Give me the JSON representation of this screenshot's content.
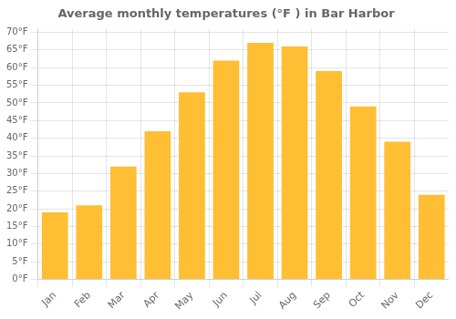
{
  "chart_data": {
    "type": "bar",
    "title": "Average monthly temperatures (°F ) in Bar Harbor",
    "categories": [
      "Jan",
      "Feb",
      "Mar",
      "Apr",
      "May",
      "Jun",
      "Jul",
      "Aug",
      "Sep",
      "Oct",
      "Nov",
      "Dec"
    ],
    "values": [
      19,
      21,
      32,
      42,
      53,
      62,
      67,
      66,
      59,
      49,
      39,
      24
    ],
    "color": "#FFBE33",
    "ylim": [
      0,
      71
    ],
    "yticks": [
      {
        "value": 0,
        "label": "0°F"
      },
      {
        "value": 5,
        "label": "5°F"
      },
      {
        "value": 10,
        "label": "10°F"
      },
      {
        "value": 15,
        "label": "15°F"
      },
      {
        "value": 20,
        "label": "20°F"
      },
      {
        "value": 25,
        "label": "25°F"
      },
      {
        "value": 30,
        "label": "30°F"
      },
      {
        "value": 35,
        "label": "35°F"
      },
      {
        "value": 40,
        "label": "40°F"
      },
      {
        "value": 45,
        "label": "45°F"
      },
      {
        "value": 50,
        "label": "50°F"
      },
      {
        "value": 55,
        "label": "55°F"
      },
      {
        "value": 60,
        "label": "60°F"
      },
      {
        "value": 65,
        "label": "65°F"
      },
      {
        "value": 70,
        "label": "70°F"
      }
    ],
    "grid": true
  }
}
